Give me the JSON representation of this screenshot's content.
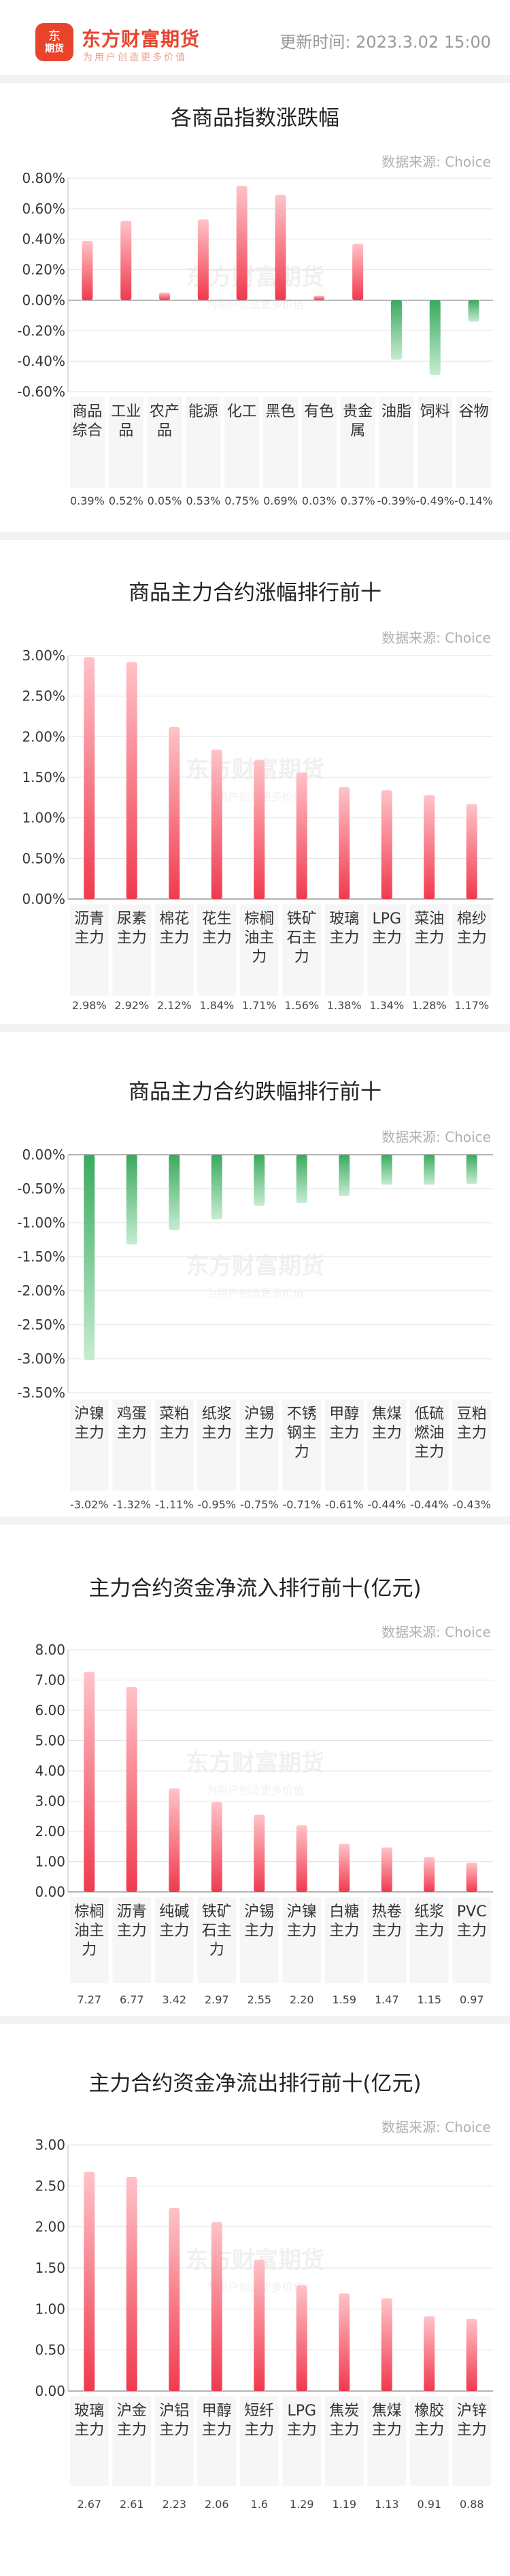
{
  "header": {
    "logo_glyph": "东",
    "logo_badge_text": "期货",
    "brand": "东方财富期货",
    "slogan": "为用户创造更多价值",
    "update_time": "更新时间: 2023.3.02 15:00"
  },
  "source_label": "数据来源: Choice",
  "watermark": {
    "brand": "东方财富期货",
    "slogan": "为用户创造更多价值"
  },
  "colors": {
    "up": "#f03a4e",
    "down": "#3aaa5e",
    "brand": "#e8442c"
  },
  "chart_data": [
    {
      "type": "bar",
      "title": "各商品指数涨跌幅",
      "categories": [
        "商品综合",
        "工业品",
        "农产品",
        "能源",
        "化工",
        "黑色",
        "有色",
        "贵金属",
        "油脂",
        "饲料",
        "谷物"
      ],
      "values": [
        0.39,
        0.52,
        0.05,
        0.53,
        0.75,
        0.69,
        0.03,
        0.37,
        -0.39,
        -0.49,
        -0.14
      ],
      "value_labels": [
        "0.39%",
        "0.52%",
        "0.05%",
        "0.53%",
        "0.75%",
        "0.69%",
        "0.03%",
        "0.37%",
        "-0.39%",
        "-0.49%",
        "-0.14%"
      ],
      "ylim": [
        -0.6,
        0.8
      ],
      "yticks": [
        0.8,
        0.6,
        0.4,
        0.2,
        0.0,
        -0.2,
        -0.4,
        -0.6
      ],
      "ytick_labels": [
        "0.80%",
        "0.60%",
        "0.40%",
        "0.20%",
        "0.00%",
        "-0.20%",
        "-0.40%",
        "-0.60%"
      ],
      "grid": true
    },
    {
      "type": "bar",
      "title": "商品主力合约涨幅排行前十",
      "categories": [
        "沥青主力",
        "尿素主力",
        "棉花主力",
        "花生主力",
        "棕榈油主力",
        "铁矿石主力",
        "玻璃主力",
        "LPG主力",
        "菜油主力",
        "棉纱主力"
      ],
      "values": [
        2.98,
        2.92,
        2.12,
        1.84,
        1.71,
        1.56,
        1.38,
        1.34,
        1.28,
        1.17
      ],
      "value_labels": [
        "2.98%",
        "2.92%",
        "2.12%",
        "1.84%",
        "1.71%",
        "1.56%",
        "1.38%",
        "1.34%",
        "1.28%",
        "1.17%"
      ],
      "ylim": [
        0,
        3
      ],
      "yticks": [
        3.0,
        2.5,
        2.0,
        1.5,
        1.0,
        0.5,
        0.0
      ],
      "ytick_labels": [
        "3.00%",
        "2.50%",
        "2.00%",
        "1.50%",
        "1.00%",
        "0.50%",
        "0.00%"
      ],
      "grid": true
    },
    {
      "type": "bar",
      "title": "商品主力合约跌幅排行前十",
      "categories": [
        "沪镍主力",
        "鸡蛋主力",
        "菜粕主力",
        "纸浆主力",
        "沪锡主力",
        "不锈钢主力",
        "甲醇主力",
        "焦煤主力",
        "低硫燃油主力",
        "豆粕主力"
      ],
      "values": [
        -3.02,
        -1.32,
        -1.11,
        -0.95,
        -0.75,
        -0.71,
        -0.61,
        -0.44,
        -0.44,
        -0.43
      ],
      "value_labels": [
        "-3.02%",
        "-1.32%",
        "-1.11%",
        "-0.95%",
        "-0.75%",
        "-0.71%",
        "-0.61%",
        "-0.44%",
        "-0.44%",
        "-0.43%"
      ],
      "ylim": [
        -3.5,
        0
      ],
      "yticks": [
        0.0,
        -0.5,
        -1.0,
        -1.5,
        -2.0,
        -2.5,
        -3.0,
        -3.5
      ],
      "ytick_labels": [
        "0.00%",
        "-0.50%",
        "-1.00%",
        "-1.50%",
        "-2.00%",
        "-2.50%",
        "-3.00%",
        "-3.50%"
      ],
      "grid": true
    },
    {
      "type": "bar",
      "title": "主力合约资金净流入排行前十(亿元)",
      "categories": [
        "棕榈油主力",
        "沥青主力",
        "纯碱主力",
        "铁矿石主力",
        "沪锡主力",
        "沪镍主力",
        "白糖主力",
        "热卷主力",
        "纸浆主力",
        "PVC主力"
      ],
      "values": [
        7.27,
        6.77,
        3.42,
        2.97,
        2.55,
        2.2,
        1.59,
        1.47,
        1.15,
        0.97
      ],
      "value_labels": [
        "7.27",
        "6.77",
        "3.42",
        "2.97",
        "2.55",
        "2.20",
        "1.59",
        "1.47",
        "1.15",
        "0.97"
      ],
      "ylim": [
        0,
        8
      ],
      "yticks": [
        8,
        7,
        6,
        5,
        4,
        3,
        2,
        1,
        0
      ],
      "ytick_labels": [
        "8.00",
        "7.00",
        "6.00",
        "5.00",
        "4.00",
        "3.00",
        "2.00",
        "1.00",
        "0.00"
      ],
      "grid": true
    },
    {
      "type": "bar",
      "title": "主力合约资金净流出排行前十(亿元)",
      "categories": [
        "玻璃主力",
        "沪金主力",
        "沪铝主力",
        "甲醇主力",
        "短纤主力",
        "LPG主力",
        "焦炭主力",
        "焦煤主力",
        "橡胶主力",
        "沪锌主力"
      ],
      "values": [
        2.67,
        2.61,
        2.23,
        2.06,
        1.6,
        1.29,
        1.19,
        1.13,
        0.91,
        0.88
      ],
      "value_labels": [
        "2.67",
        "2.61",
        "2.23",
        "2.06",
        "1.6",
        "1.29",
        "1.19",
        "1.13",
        "0.91",
        "0.88"
      ],
      "ylim": [
        0,
        3
      ],
      "yticks": [
        3.0,
        2.5,
        2.0,
        1.5,
        1.0,
        0.5,
        0.0
      ],
      "ytick_labels": [
        "3.00",
        "2.50",
        "2.00",
        "1.50",
        "1.00",
        "0.50",
        "0.00"
      ],
      "grid": true
    }
  ]
}
